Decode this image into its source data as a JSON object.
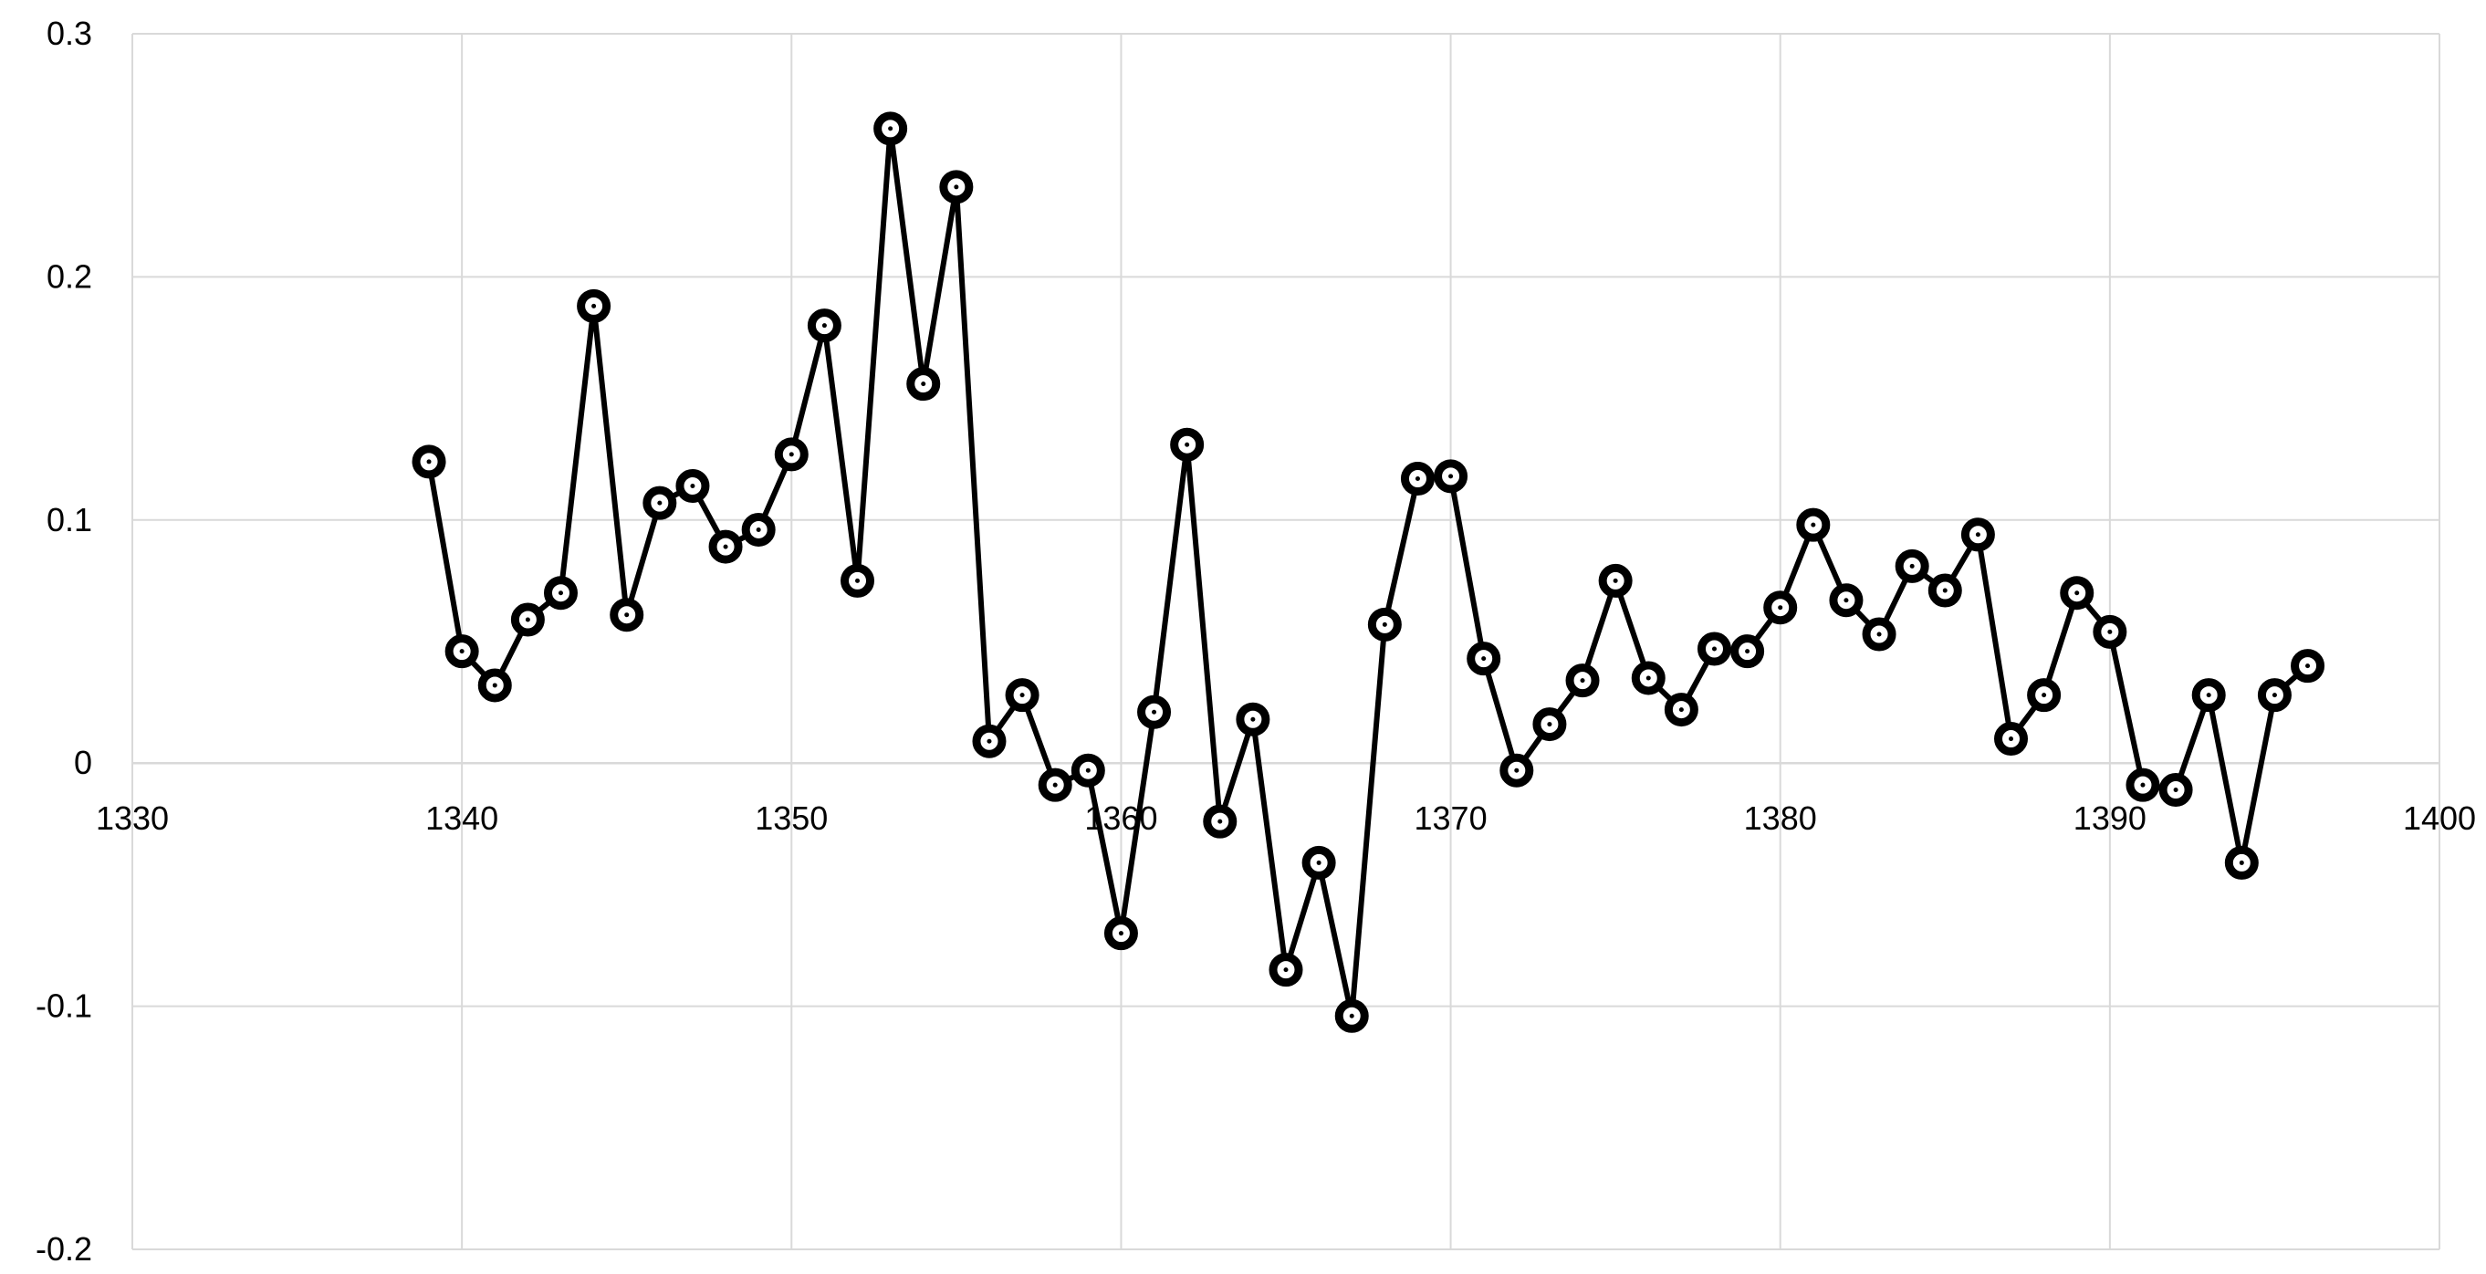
{
  "chart_data": {
    "type": "line",
    "markers": "ring",
    "title": "",
    "xlabel": "",
    "ylabel": "",
    "xlim": [
      1330,
      1400
    ],
    "ylim": [
      -0.2,
      0.3
    ],
    "xticks": [
      1330,
      1340,
      1350,
      1360,
      1370,
      1380,
      1390,
      1400
    ],
    "yticks": [
      -0.2,
      -0.1,
      0,
      0.1,
      0.2,
      0.3
    ],
    "xtick_labels": [
      "1330",
      "1340",
      "1350",
      "1360",
      "1370",
      "1380",
      "1390",
      "1400"
    ],
    "ytick_labels": [
      "-0.2",
      "-0.1",
      "0",
      "0.1",
      "0.2",
      "0.3"
    ],
    "grid": true,
    "legend": "none",
    "colors": {
      "series": "#000000",
      "grid": "#d9d9d9",
      "background": "#ffffff"
    },
    "series": [
      {
        "x": [
          1339,
          1340,
          1341,
          1342,
          1343,
          1344,
          1345,
          1346,
          1347,
          1348,
          1349,
          1350,
          1351,
          1352,
          1353,
          1354,
          1355,
          1356,
          1357,
          1358,
          1359,
          1360,
          1361,
          1362,
          1363,
          1364,
          1365,
          1366,
          1367,
          1368,
          1369,
          1370,
          1371,
          1372,
          1373,
          1374,
          1375,
          1376,
          1377,
          1378,
          1379,
          1380,
          1381,
          1382,
          1383,
          1384,
          1385,
          1386,
          1387,
          1388,
          1389,
          1390,
          1391,
          1392,
          1393,
          1394,
          1395,
          1396
        ],
        "values": [
          0.124,
          0.046,
          0.032,
          0.059,
          0.07,
          0.188,
          0.061,
          0.107,
          0.114,
          0.089,
          0.096,
          0.127,
          0.18,
          0.075,
          0.261,
          0.156,
          0.237,
          0.009,
          0.028,
          -0.009,
          -0.003,
          -0.07,
          0.021,
          0.131,
          -0.024,
          0.018,
          -0.085,
          -0.041,
          -0.104,
          0.057,
          0.117,
          0.118,
          0.043,
          -0.003,
          0.016,
          0.034,
          0.075,
          0.035,
          0.022,
          0.047,
          0.046,
          0.064,
          0.098,
          0.067,
          0.053,
          0.081,
          0.071,
          0.094,
          0.01,
          0.028,
          0.07,
          0.054,
          -0.009,
          -0.011,
          0.028,
          -0.041,
          0.028,
          0.04
        ]
      }
    ]
  }
}
